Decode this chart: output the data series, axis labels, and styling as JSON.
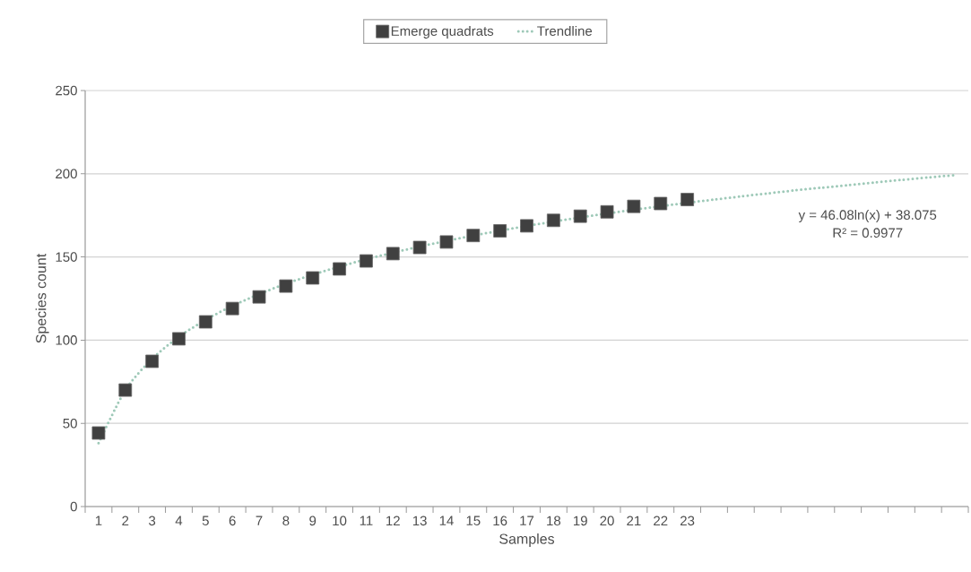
{
  "chart_data": {
    "type": "scatter",
    "xlabel": "Samples",
    "ylabel": "Species count",
    "categories": [
      "1",
      "2",
      "3",
      "4",
      "5",
      "6",
      "7",
      "8",
      "9",
      "10",
      "11",
      "12",
      "13",
      "14",
      "15",
      "16",
      "17",
      "18",
      "19",
      "20",
      "21",
      "22",
      "23",
      null,
      null,
      null,
      null,
      null,
      null,
      null,
      null,
      null,
      null
    ],
    "series": [
      {
        "name": "Emerge quadrats",
        "color": "#404040",
        "marker": "square",
        "values": [
          44.2,
          70.0,
          87.3,
          100.8,
          111.0,
          119.0,
          126.0,
          132.5,
          137.4,
          142.8,
          147.6,
          152.0,
          155.7,
          159.0,
          162.9,
          165.7,
          168.7,
          172.0,
          174.5,
          177.1,
          180.4,
          182.1,
          184.5,
          null,
          null,
          null,
          null,
          null,
          null,
          null,
          null,
          null,
          null
        ]
      },
      {
        "name": "Trendline",
        "type": "line",
        "color": "#9ec9b8",
        "line_style": "dotted",
        "marker": "none",
        "values": [
          38.1,
          70.0,
          88.7,
          102.0,
          112.2,
          120.6,
          127.7,
          133.9,
          139.3,
          144.2,
          148.6,
          152.6,
          156.3,
          159.7,
          162.9,
          165.8,
          168.6,
          171.3,
          173.8,
          176.1,
          178.4,
          180.5,
          182.6,
          184.5,
          186.4,
          188.2,
          190.0,
          191.6,
          193.2,
          194.8,
          196.3,
          197.8,
          199.2
        ]
      }
    ],
    "ylim": [
      0,
      250
    ],
    "yticks": [
      0,
      50,
      100,
      150,
      200,
      250
    ],
    "grid": "y",
    "legend": "top",
    "annotations": [
      "y = 46.08ln(x) + 38.075",
      "R² = 0.9977"
    ]
  }
}
